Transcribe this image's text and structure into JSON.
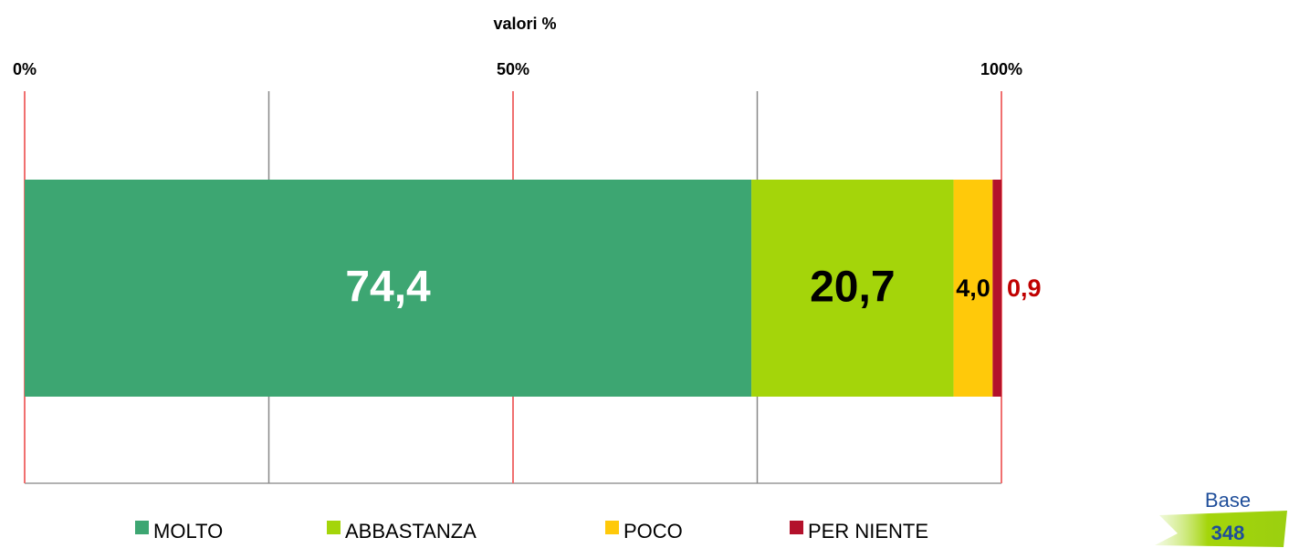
{
  "chart_data": {
    "type": "stacked_bar_horizontal",
    "axis_label": "valori %",
    "xlim": [
      0,
      100
    ],
    "xticks": [
      {
        "value": 0,
        "label": "0%"
      },
      {
        "value": 50,
        "label": "50%"
      },
      {
        "value": 100,
        "label": "100%"
      }
    ],
    "xticks_minor": [
      25,
      75
    ],
    "grid": true,
    "legend": "bottom",
    "series": [
      {
        "name": "MOLTO",
        "color": "#3da672",
        "label_color": "#ffffff",
        "values": [
          74.4
        ],
        "value_labels": [
          "74,4"
        ]
      },
      {
        "name": "ABBASTANZA",
        "color": "#a4d50a",
        "label_color": "#000000",
        "values": [
          20.7
        ],
        "value_labels": [
          "20,7"
        ]
      },
      {
        "name": "POCO",
        "color": "#ffc90a",
        "label_color": "#000000",
        "values": [
          4.0
        ],
        "value_labels": [
          "4,0"
        ]
      },
      {
        "name": "PER NIENTE",
        "color": "#b3112b",
        "label_color": "#c00000",
        "values": [
          0.9
        ],
        "value_labels": [
          "0,9"
        ]
      }
    ],
    "base": {
      "label": "Base",
      "value": 348
    }
  }
}
